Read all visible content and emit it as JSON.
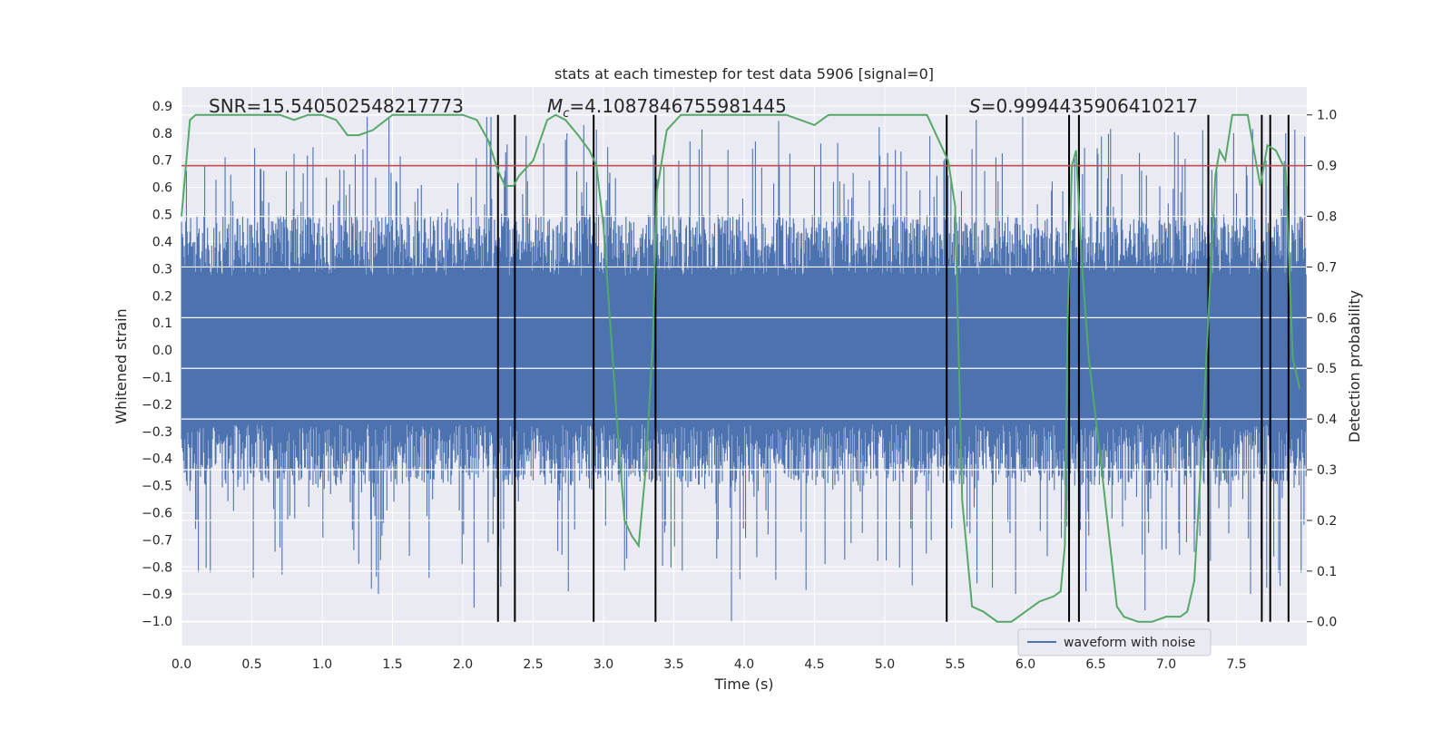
{
  "chart_data": {
    "type": "line",
    "title": "stats at each timestep for test data 5906 [signal=0]",
    "xlabel": "Time (s)",
    "ylabel_left": "Whitened strain",
    "ylabel_right": "Detection probability",
    "xlim": [
      0.0,
      8.0
    ],
    "ylim_left": [
      -1.09,
      0.97
    ],
    "ylim_right": [
      -0.047,
      1.055
    ],
    "x_ticks": [
      0.0,
      0.5,
      1.0,
      1.5,
      2.0,
      2.5,
      3.0,
      3.5,
      4.0,
      4.5,
      5.0,
      5.5,
      6.0,
      6.5,
      7.0,
      7.5
    ],
    "x_tick_labels": [
      "0.0",
      "0.5",
      "1.0",
      "1.5",
      "2.0",
      "2.5",
      "3.0",
      "3.5",
      "4.0",
      "4.5",
      "5.0",
      "5.5",
      "6.0",
      "6.5",
      "7.0",
      "7.5"
    ],
    "y_left_ticks": [
      0.9,
      0.8,
      0.7,
      0.6,
      0.5,
      0.4,
      0.3,
      0.2,
      0.1,
      0.0,
      -0.1,
      -0.2,
      -0.3,
      -0.4,
      -0.5,
      -0.6,
      -0.7,
      -0.8,
      -0.9,
      -1.0
    ],
    "y_left_tick_labels": [
      "0.9",
      "0.8",
      "0.7",
      "0.6",
      "0.5",
      "0.4",
      "0.3",
      "0.2",
      "0.1",
      "0.0",
      "−0.1",
      "−0.2",
      "−0.3",
      "−0.4",
      "−0.5",
      "−0.6",
      "−0.7",
      "−0.8",
      "−0.9",
      "−1.0"
    ],
    "y_right_ticks": [
      1.0,
      0.9,
      0.8,
      0.7,
      0.6,
      0.5,
      0.4,
      0.3,
      0.2,
      0.1,
      0.0
    ],
    "y_right_tick_labels": [
      "1.0",
      "0.9",
      "0.8",
      "0.7",
      "0.6",
      "0.5",
      "0.4",
      "0.3",
      "0.2",
      "0.1",
      "0.0"
    ],
    "grid": true,
    "legend": {
      "entries": [
        "waveform with noise"
      ],
      "placement": "lower-right"
    },
    "annotations": [
      {
        "text": "SNR=15.540502548217773"
      },
      {
        "prefix": "M",
        "sub": "c",
        "text": "=4.1087846755981445"
      },
      {
        "prefix": "S",
        "text": "=0.9994435906410217"
      }
    ],
    "threshold_line": {
      "axis": "right",
      "y": 0.9,
      "color": "#c44e52"
    },
    "detection_lines_x": [
      2.25,
      2.37,
      2.93,
      3.37,
      5.44,
      6.31,
      6.38,
      7.3,
      7.68,
      7.74,
      7.87
    ],
    "waveform": {
      "name": "waveform with noise",
      "color": "#4c72b0",
      "axis": "left",
      "sample_count": 1600,
      "seed": 5906,
      "typical_range": [
        -0.5,
        0.5
      ],
      "extreme_range": [
        -1.0,
        0.86
      ],
      "note_spikes": [
        {
          "x": 0.06,
          "y": -0.52
        },
        {
          "x": 0.11,
          "y": -0.63
        },
        {
          "x": 0.1,
          "y": -0.66
        },
        {
          "x": 0.12,
          "y": -0.82
        },
        {
          "x": 0.51,
          "y": -0.84
        },
        {
          "x": 1.4,
          "y": -0.9
        },
        {
          "x": 1.35,
          "y": -0.88
        },
        {
          "x": 1.76,
          "y": -0.84
        },
        {
          "x": 2.08,
          "y": -0.95
        },
        {
          "x": 2.75,
          "y": -0.89
        },
        {
          "x": 3.91,
          "y": -1.0
        },
        {
          "x": 5.93,
          "y": -0.9
        },
        {
          "x": 6.43,
          "y": -0.89
        },
        {
          "x": 6.85,
          "y": -0.96
        },
        {
          "x": 7.6,
          "y": -0.9
        },
        {
          "x": 7.81,
          "y": -0.87
        },
        {
          "x": 6.31,
          "y": 0.86
        },
        {
          "x": 7.48,
          "y": 0.8
        },
        {
          "x": 7.85,
          "y": 0.8
        }
      ]
    },
    "probability": {
      "name": "detection probability",
      "color": "#55a868",
      "axis": "right",
      "x": [
        0.0,
        0.06,
        0.1,
        0.2,
        0.3,
        0.4,
        0.5,
        0.6,
        0.7,
        0.8,
        0.9,
        1.0,
        1.1,
        1.18,
        1.26,
        1.36,
        1.5,
        1.6,
        1.8,
        2.0,
        2.1,
        2.18,
        2.25,
        2.3,
        2.36,
        2.4,
        2.5,
        2.6,
        2.66,
        2.73,
        2.82,
        2.9,
        2.95,
        3.0,
        3.05,
        3.1,
        3.15,
        3.2,
        3.25,
        3.3,
        3.35,
        3.38,
        3.45,
        3.55,
        3.7,
        3.9,
        4.0,
        4.3,
        4.5,
        4.6,
        4.7,
        4.9,
        5.1,
        5.3,
        5.4,
        5.45,
        5.5,
        5.55,
        5.62,
        5.7,
        5.8,
        5.9,
        6.0,
        6.1,
        6.2,
        6.25,
        6.28,
        6.3,
        6.33,
        6.36,
        6.4,
        6.45,
        6.55,
        6.65,
        6.7,
        6.8,
        6.9,
        7.0,
        7.1,
        7.15,
        7.2,
        7.25,
        7.3,
        7.35,
        7.38,
        7.42,
        7.47,
        7.52,
        7.58,
        7.63,
        7.67,
        7.72,
        7.78,
        7.85,
        7.9,
        7.95
      ],
      "y": [
        0.8,
        0.99,
        1.0,
        1.0,
        1.0,
        1.0,
        1.0,
        1.0,
        1.0,
        0.99,
        1.0,
        1.0,
        0.99,
        0.96,
        0.96,
        0.97,
        1.0,
        1.0,
        1.0,
        1.0,
        0.99,
        0.95,
        0.89,
        0.86,
        0.86,
        0.88,
        0.91,
        0.99,
        1.0,
        0.99,
        0.96,
        0.93,
        0.9,
        0.78,
        0.58,
        0.38,
        0.2,
        0.17,
        0.15,
        0.3,
        0.55,
        0.85,
        0.97,
        1.0,
        1.0,
        1.0,
        1.0,
        1.0,
        0.98,
        1.0,
        1.0,
        1.0,
        1.0,
        1.0,
        0.94,
        0.91,
        0.82,
        0.24,
        0.03,
        0.02,
        0.0,
        0.0,
        0.02,
        0.04,
        0.05,
        0.06,
        0.15,
        0.6,
        0.9,
        0.93,
        0.71,
        0.52,
        0.28,
        0.03,
        0.01,
        0.0,
        0.0,
        0.01,
        0.01,
        0.02,
        0.08,
        0.32,
        0.6,
        0.88,
        0.93,
        0.91,
        1.0,
        1.0,
        1.0,
        0.92,
        0.86,
        0.94,
        0.93,
        0.89,
        0.52,
        0.46
      ]
    }
  }
}
